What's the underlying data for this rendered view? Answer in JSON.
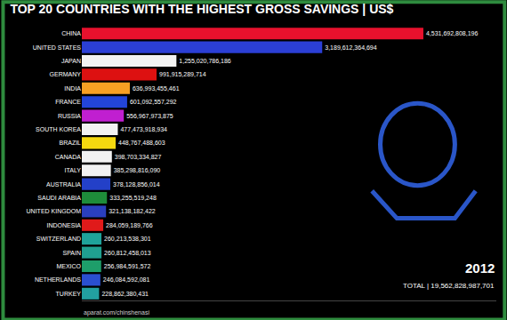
{
  "chart_data": {
    "type": "bar",
    "orientation": "horizontal",
    "title": "TOP 20 COUNTRIES WITH THE HIGHEST GROSS SAVINGS | US$",
    "categories": [
      "CHINA",
      "UNITED STATES",
      "JAPAN",
      "GERMANY",
      "INDIA",
      "FRANCE",
      "RUSSIA",
      "SOUTH KOREA",
      "BRAZIL",
      "CANADA",
      "ITALY",
      "AUSTRALIA",
      "SAUDI ARABIA",
      "UNITED KINGDOM",
      "INDONESIA",
      "SWITZERLAND",
      "SPAIN",
      "MEXICO",
      "NETHERLANDS",
      "TURKEY"
    ],
    "values": [
      4531692808196,
      3189612364694,
      1255020786186,
      991915289714,
      636993455461,
      601092557292,
      556967973875,
      477473918934,
      448767488603,
      398703334827,
      385298816090,
      378128856014,
      333255519248,
      321138182422,
      284059189766,
      260213538301,
      260812458013,
      256984591572,
      246084592081,
      228862380431
    ],
    "value_labels": [
      "4,531,692,808,196",
      "3,189,612,364,694",
      "1,255,020,786,186",
      "991,915,289,714",
      "636,993,455,461",
      "601,092,557,292",
      "556,967,973,875",
      "477,473,918,934",
      "448,767,488,603",
      "398,703,334,827",
      "385,298,816,090",
      "378,128,856,014",
      "333,255,519,248",
      "321,138,182,422",
      "284,059,189,766",
      "260,213,538,301",
      "260,812,458,013",
      "256,984,591,572",
      "246,084,592,081",
      "228,862,380,431"
    ],
    "colors": [
      "#e8112d",
      "#2b3fd6",
      "#f2f2f2",
      "#dd1111",
      "#f7a023",
      "#2345d8",
      "#c01fd0",
      "#f2f2f2",
      "#f5d90f",
      "#f2f2f2",
      "#f2f2f2",
      "#2340c8",
      "#1e8c3a",
      "#2a3fbf",
      "#e01a1a",
      "#1fa39a",
      "#20a090",
      "#1e9e6a",
      "#2a4fd0",
      "#22a0a0"
    ],
    "xlim": [
      0,
      5500000000000
    ],
    "data_labels": true,
    "tick_labels": "y",
    "grid": false,
    "annotations": [
      "2012",
      "TOTAL | 19,562,828,987,701",
      "aparat.com/chinshenasi"
    ]
  }
}
